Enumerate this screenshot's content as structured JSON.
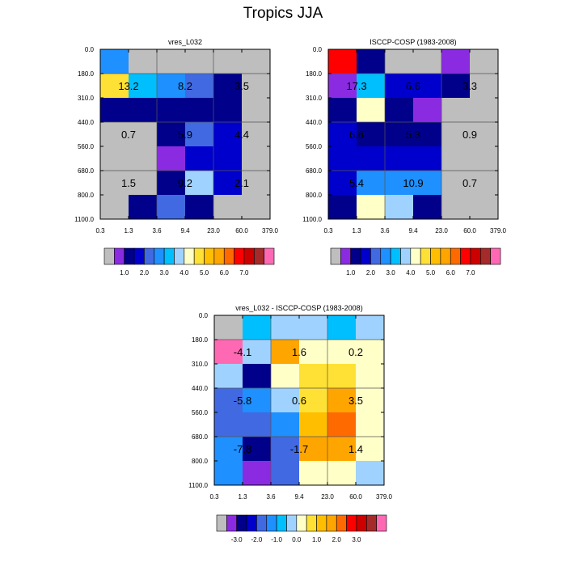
{
  "page_title": "Tropics JJA",
  "axis": {
    "x_ticks": [
      "0.3",
      "1.3",
      "3.6",
      "9.4",
      "23.0",
      "60.0",
      "379.0"
    ],
    "y_ticks": [
      "0.0",
      "180.0",
      "310.0",
      "440.0",
      "560.0",
      "680.0",
      "800.0",
      "1100.0"
    ]
  },
  "palettes": {
    "absolute": [
      "#bebebe",
      "#8a2be2",
      "#00008b",
      "#0000cd",
      "#4169e1",
      "#1e90ff",
      "#00bfff",
      "#a0d2ff",
      "#ffffc8",
      "#ffe135",
      "#ffbf00",
      "#ffa500",
      "#ff6a00",
      "#ff0000",
      "#cd0000",
      "#a52a2a",
      "#ff69b4"
    ],
    "difference": [
      "#bebebe",
      "#8a2be2",
      "#00008b",
      "#0000cd",
      "#4169e1",
      "#1e90ff",
      "#00bfff",
      "#a0d2ff",
      "#ffffc8",
      "#ffe135",
      "#ffbf00",
      "#ffa500",
      "#ff6a00",
      "#ff0000",
      "#cd0000",
      "#a52a2a",
      "#ff69b4"
    ]
  },
  "colorbars": {
    "absolute_labels": [
      "1.0",
      "2.0",
      "3.0",
      "4.0",
      "5.0",
      "6.0",
      "7.0"
    ],
    "difference_labels": [
      "-3.0",
      "-2.0",
      "-1.0",
      "0.0",
      "1.0",
      "2.0",
      "3.0"
    ]
  },
  "chart_data": [
    {
      "type": "heatmap",
      "title": "vres_L032",
      "palette": "absolute",
      "cells": [
        [
          5,
          0,
          0,
          0,
          0,
          0
        ],
        [
          9,
          6,
          5,
          4,
          2,
          0
        ],
        [
          2,
          2,
          2,
          2,
          2,
          0
        ],
        [
          0,
          0,
          2,
          4,
          3,
          0
        ],
        [
          0,
          0,
          1,
          3,
          3,
          0
        ],
        [
          0,
          0,
          2,
          7,
          3,
          0
        ],
        [
          0,
          2,
          4,
          2,
          0,
          0
        ]
      ],
      "block_labels": [
        [
          "13.2",
          "8.2",
          "3.5"
        ],
        [
          "0.7",
          "5.9",
          "4.4"
        ],
        [
          "1.5",
          "9.2",
          "2.1"
        ]
      ]
    },
    {
      "type": "heatmap",
      "title": "ISCCP-COSP (1983-2008)",
      "palette": "absolute",
      "cells": [
        [
          13,
          2,
          0,
          0,
          1,
          0
        ],
        [
          1,
          6,
          3,
          3,
          2,
          0
        ],
        [
          2,
          8,
          2,
          1,
          0,
          0
        ],
        [
          3,
          2,
          2,
          2,
          0,
          0
        ],
        [
          3,
          3,
          3,
          3,
          0,
          0
        ],
        [
          3,
          5,
          5,
          5,
          0,
          0
        ],
        [
          2,
          8,
          7,
          2,
          0,
          0
        ]
      ],
      "block_labels": [
        [
          "17.3",
          "6.6",
          "3.3"
        ],
        [
          "6.6",
          "5.3",
          "0.9"
        ],
        [
          "5.4",
          "10.9",
          "0.7"
        ]
      ]
    },
    {
      "type": "heatmap",
      "title": "vres_L032 - ISCCP-COSP (1983-2008)",
      "palette": "difference",
      "cells": [
        [
          0,
          6,
          7,
          7,
          6,
          7
        ],
        [
          16,
          7,
          11,
          8,
          8,
          8
        ],
        [
          7,
          2,
          8,
          9,
          9,
          8
        ],
        [
          4,
          5,
          7,
          9,
          11,
          8
        ],
        [
          4,
          4,
          5,
          10,
          12,
          8
        ],
        [
          5,
          2,
          4,
          11,
          11,
          8
        ],
        [
          5,
          1,
          4,
          8,
          8,
          7
        ]
      ],
      "block_labels": [
        [
          "-4.1",
          "1.6",
          "0.2"
        ],
        [
          "-5.8",
          "0.6",
          "3.5"
        ],
        [
          "-7.8",
          "-1.7",
          "1.4"
        ]
      ]
    }
  ]
}
